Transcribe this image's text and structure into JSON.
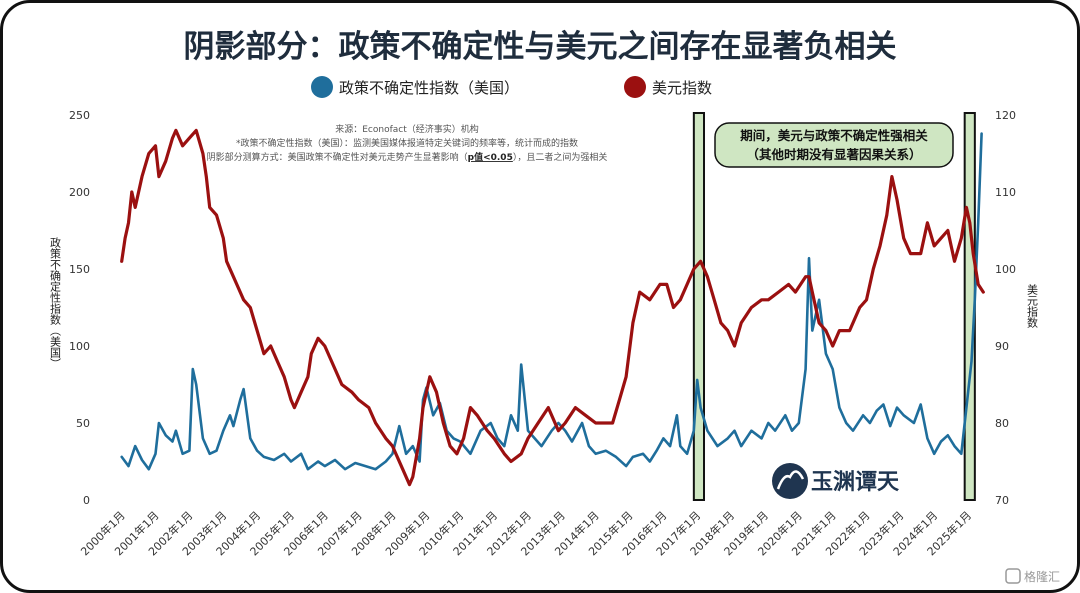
{
  "title": "阴影部分：政策不确定性与美元之间存在显著负相关",
  "legend": [
    {
      "label": "政策不确定性指数（美国）",
      "color": "#1f6e9c"
    },
    {
      "label": "美元指数",
      "color": "#9b1010"
    }
  ],
  "notes": [
    "来源：Econofact（经济事实）机构",
    "*政策不确定性指数（美国）：监测美国媒体报道特定关键词的频率等，统计而成的指数",
    "阴影部分测算方式：美国政策不确定性对美元走势产生显著影响（",
    "p值<0.05",
    "），且二者之间为强相关"
  ],
  "annotation": {
    "line1": "期间，美元与政策不确定性强相关",
    "line2": "（其他时期没有显著因果关系）"
  },
  "left_axis_label": "政策不确定性指数（美国）",
  "right_axis_label": "美元指数",
  "brand": "玉渊谭天",
  "watermark": "格隆汇",
  "chart_data": {
    "type": "line",
    "x_unit": "year",
    "x_range": [
      1999.95,
      2025.5
    ],
    "x_ticks": [
      2000,
      2001,
      2002,
      2003,
      2004,
      2005,
      2006,
      2007,
      2008,
      2009,
      2010,
      2011,
      2012,
      2013,
      2014,
      2015,
      2016,
      2017,
      2018,
      2019,
      2020,
      2021,
      2022,
      2023,
      2024,
      2025
    ],
    "x_tick_labels": [
      "2000年1月",
      "2001年1月",
      "2002年1月",
      "2003年1月",
      "2004年1月",
      "2005年1月",
      "2006年1月",
      "2007年1月",
      "2008年1月",
      "2009年1月",
      "2010年1月",
      "2011年1月",
      "2012年1月",
      "2013年1月",
      "2014年1月",
      "2015年1月",
      "2016年1月",
      "2017年1月",
      "2018年1月",
      "2019年1月",
      "2020年1月",
      "2021年1月",
      "2022年1月",
      "2023年1月",
      "2024年1月",
      "2025年1月"
    ],
    "y_left": {
      "range": [
        0,
        250
      ],
      "ticks": [
        0,
        50,
        100,
        150,
        200,
        250
      ]
    },
    "y_right": {
      "range": [
        70,
        120
      ],
      "ticks": [
        70,
        80,
        90,
        100,
        110,
        120
      ]
    },
    "shaded_periods": [
      [
        2016.9,
        2017.2
      ],
      [
        2024.9,
        2025.2
      ]
    ],
    "series": [
      {
        "name": "政策不确定性指数（美国）",
        "axis": "left",
        "color": "#1f6e9c",
        "points": [
          [
            2000.0,
            28
          ],
          [
            2000.2,
            22
          ],
          [
            2000.4,
            35
          ],
          [
            2000.6,
            26
          ],
          [
            2000.8,
            20
          ],
          [
            2001.0,
            30
          ],
          [
            2001.1,
            50
          ],
          [
            2001.3,
            42
          ],
          [
            2001.5,
            38
          ],
          [
            2001.6,
            45
          ],
          [
            2001.8,
            30
          ],
          [
            2002.0,
            32
          ],
          [
            2002.1,
            85
          ],
          [
            2002.2,
            75
          ],
          [
            2002.4,
            40
          ],
          [
            2002.6,
            30
          ],
          [
            2002.8,
            32
          ],
          [
            2003.0,
            45
          ],
          [
            2003.2,
            55
          ],
          [
            2003.3,
            48
          ],
          [
            2003.5,
            65
          ],
          [
            2003.6,
            72
          ],
          [
            2003.8,
            40
          ],
          [
            2004.0,
            32
          ],
          [
            2004.2,
            28
          ],
          [
            2004.5,
            26
          ],
          [
            2004.8,
            30
          ],
          [
            2005.0,
            25
          ],
          [
            2005.3,
            30
          ],
          [
            2005.5,
            20
          ],
          [
            2005.8,
            25
          ],
          [
            2006.0,
            22
          ],
          [
            2006.3,
            26
          ],
          [
            2006.6,
            20
          ],
          [
            2006.9,
            24
          ],
          [
            2007.2,
            22
          ],
          [
            2007.5,
            20
          ],
          [
            2007.8,
            25
          ],
          [
            2008.0,
            30
          ],
          [
            2008.2,
            48
          ],
          [
            2008.4,
            30
          ],
          [
            2008.6,
            35
          ],
          [
            2008.8,
            25
          ],
          [
            2008.9,
            65
          ],
          [
            2009.0,
            73
          ],
          [
            2009.2,
            55
          ],
          [
            2009.4,
            63
          ],
          [
            2009.6,
            45
          ],
          [
            2009.8,
            40
          ],
          [
            2010.0,
            38
          ],
          [
            2010.3,
            30
          ],
          [
            2010.6,
            45
          ],
          [
            2010.9,
            50
          ],
          [
            2011.1,
            40
          ],
          [
            2011.3,
            35
          ],
          [
            2011.5,
            55
          ],
          [
            2011.7,
            45
          ],
          [
            2011.8,
            88
          ],
          [
            2012.0,
            45
          ],
          [
            2012.2,
            40
          ],
          [
            2012.4,
            35
          ],
          [
            2012.7,
            45
          ],
          [
            2012.9,
            50
          ],
          [
            2013.1,
            45
          ],
          [
            2013.3,
            38
          ],
          [
            2013.6,
            50
          ],
          [
            2013.8,
            35
          ],
          [
            2014.0,
            30
          ],
          [
            2014.3,
            32
          ],
          [
            2014.6,
            28
          ],
          [
            2014.9,
            22
          ],
          [
            2015.1,
            28
          ],
          [
            2015.4,
            30
          ],
          [
            2015.6,
            25
          ],
          [
            2015.8,
            32
          ],
          [
            2016.0,
            40
          ],
          [
            2016.2,
            35
          ],
          [
            2016.4,
            55
          ],
          [
            2016.5,
            35
          ],
          [
            2016.7,
            30
          ],
          [
            2016.9,
            45
          ],
          [
            2017.0,
            78
          ],
          [
            2017.1,
            60
          ],
          [
            2017.3,
            45
          ],
          [
            2017.6,
            35
          ],
          [
            2017.9,
            40
          ],
          [
            2018.1,
            45
          ],
          [
            2018.3,
            35
          ],
          [
            2018.6,
            45
          ],
          [
            2018.9,
            40
          ],
          [
            2019.1,
            50
          ],
          [
            2019.3,
            45
          ],
          [
            2019.6,
            55
          ],
          [
            2019.8,
            45
          ],
          [
            2020.0,
            50
          ],
          [
            2020.2,
            85
          ],
          [
            2020.3,
            157
          ],
          [
            2020.4,
            110
          ],
          [
            2020.5,
            120
          ],
          [
            2020.6,
            130
          ],
          [
            2020.8,
            95
          ],
          [
            2021.0,
            85
          ],
          [
            2021.2,
            60
          ],
          [
            2021.4,
            50
          ],
          [
            2021.6,
            45
          ],
          [
            2021.9,
            55
          ],
          [
            2022.1,
            50
          ],
          [
            2022.3,
            58
          ],
          [
            2022.5,
            62
          ],
          [
            2022.7,
            48
          ],
          [
            2022.9,
            60
          ],
          [
            2023.1,
            55
          ],
          [
            2023.4,
            50
          ],
          [
            2023.6,
            62
          ],
          [
            2023.8,
            40
          ],
          [
            2024.0,
            30
          ],
          [
            2024.2,
            38
          ],
          [
            2024.4,
            42
          ],
          [
            2024.6,
            35
          ],
          [
            2024.8,
            30
          ],
          [
            2025.0,
            70
          ],
          [
            2025.1,
            90
          ],
          [
            2025.2,
            130
          ],
          [
            2025.3,
            180
          ],
          [
            2025.4,
            238
          ]
        ]
      },
      {
        "name": "美元指数",
        "axis": "right",
        "color": "#9b1010",
        "points": [
          [
            2000.0,
            101
          ],
          [
            2000.1,
            104
          ],
          [
            2000.2,
            106
          ],
          [
            2000.3,
            110
          ],
          [
            2000.4,
            108
          ],
          [
            2000.6,
            112
          ],
          [
            2000.8,
            115
          ],
          [
            2001.0,
            116
          ],
          [
            2001.1,
            112
          ],
          [
            2001.3,
            114
          ],
          [
            2001.5,
            117
          ],
          [
            2001.6,
            118
          ],
          [
            2001.8,
            116
          ],
          [
            2002.0,
            117
          ],
          [
            2002.2,
            118
          ],
          [
            2002.4,
            115
          ],
          [
            2002.5,
            112
          ],
          [
            2002.6,
            108
          ],
          [
            2002.8,
            107
          ],
          [
            2003.0,
            104
          ],
          [
            2003.1,
            101
          ],
          [
            2003.3,
            99
          ],
          [
            2003.4,
            98
          ],
          [
            2003.6,
            96
          ],
          [
            2003.8,
            95
          ],
          [
            2004.0,
            92
          ],
          [
            2004.2,
            89
          ],
          [
            2004.4,
            90
          ],
          [
            2004.6,
            88
          ],
          [
            2004.8,
            86
          ],
          [
            2005.0,
            83
          ],
          [
            2005.1,
            82
          ],
          [
            2005.3,
            84
          ],
          [
            2005.5,
            86
          ],
          [
            2005.6,
            89
          ],
          [
            2005.8,
            91
          ],
          [
            2006.0,
            90
          ],
          [
            2006.2,
            88
          ],
          [
            2006.5,
            85
          ],
          [
            2006.8,
            84
          ],
          [
            2007.0,
            83
          ],
          [
            2007.3,
            82
          ],
          [
            2007.5,
            80
          ],
          [
            2007.8,
            78
          ],
          [
            2008.0,
            77
          ],
          [
            2008.3,
            74
          ],
          [
            2008.5,
            72
          ],
          [
            2008.6,
            73
          ],
          [
            2008.8,
            78
          ],
          [
            2008.9,
            82
          ],
          [
            2009.1,
            86
          ],
          [
            2009.3,
            84
          ],
          [
            2009.5,
            80
          ],
          [
            2009.7,
            77
          ],
          [
            2009.9,
            76
          ],
          [
            2010.1,
            78
          ],
          [
            2010.3,
            82
          ],
          [
            2010.5,
            81
          ],
          [
            2010.8,
            79
          ],
          [
            2011.0,
            78
          ],
          [
            2011.3,
            76
          ],
          [
            2011.5,
            75
          ],
          [
            2011.8,
            76
          ],
          [
            2012.0,
            78
          ],
          [
            2012.3,
            80
          ],
          [
            2012.6,
            82
          ],
          [
            2012.9,
            79
          ],
          [
            2013.1,
            80
          ],
          [
            2013.4,
            82
          ],
          [
            2013.7,
            81
          ],
          [
            2014.0,
            80
          ],
          [
            2014.3,
            80
          ],
          [
            2014.5,
            80
          ],
          [
            2014.7,
            83
          ],
          [
            2014.9,
            86
          ],
          [
            2015.1,
            93
          ],
          [
            2015.3,
            97
          ],
          [
            2015.6,
            96
          ],
          [
            2015.9,
            98
          ],
          [
            2016.1,
            98
          ],
          [
            2016.3,
            95
          ],
          [
            2016.5,
            96
          ],
          [
            2016.7,
            98
          ],
          [
            2016.9,
            100
          ],
          [
            2017.1,
            101
          ],
          [
            2017.3,
            99
          ],
          [
            2017.5,
            96
          ],
          [
            2017.7,
            93
          ],
          [
            2017.9,
            92
          ],
          [
            2018.1,
            90
          ],
          [
            2018.3,
            93
          ],
          [
            2018.6,
            95
          ],
          [
            2018.9,
            96
          ],
          [
            2019.1,
            96
          ],
          [
            2019.4,
            97
          ],
          [
            2019.7,
            98
          ],
          [
            2019.9,
            97
          ],
          [
            2020.2,
            99
          ],
          [
            2020.3,
            99
          ],
          [
            2020.4,
            97
          ],
          [
            2020.6,
            93
          ],
          [
            2020.8,
            92
          ],
          [
            2021.0,
            90
          ],
          [
            2021.2,
            92
          ],
          [
            2021.5,
            92
          ],
          [
            2021.8,
            95
          ],
          [
            2022.0,
            96
          ],
          [
            2022.2,
            100
          ],
          [
            2022.4,
            103
          ],
          [
            2022.6,
            107
          ],
          [
            2022.75,
            112
          ],
          [
            2022.9,
            109
          ],
          [
            2023.1,
            104
          ],
          [
            2023.3,
            102
          ],
          [
            2023.6,
            102
          ],
          [
            2023.8,
            106
          ],
          [
            2024.0,
            103
          ],
          [
            2024.2,
            104
          ],
          [
            2024.4,
            105
          ],
          [
            2024.6,
            101
          ],
          [
            2024.8,
            104
          ],
          [
            2024.95,
            108
          ],
          [
            2025.05,
            106
          ],
          [
            2025.15,
            102
          ],
          [
            2025.3,
            98
          ],
          [
            2025.45,
            97
          ]
        ]
      }
    ]
  }
}
